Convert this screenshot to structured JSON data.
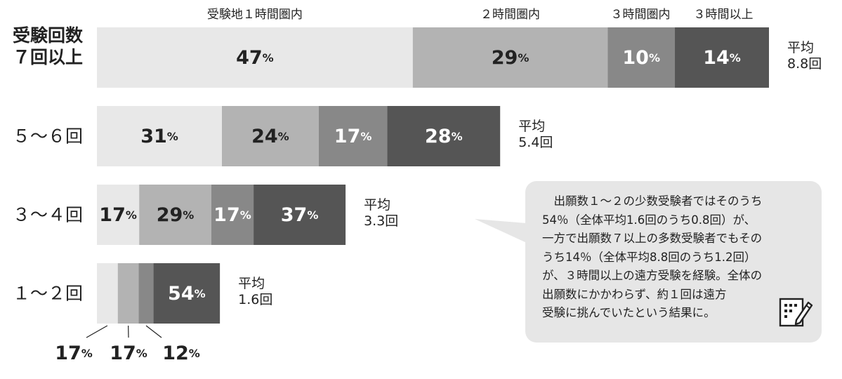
{
  "chart_data": {
    "type": "bar",
    "stacked": true,
    "orientation": "horizontal",
    "percent_suffix": "%",
    "series": [
      {
        "name": "受験地１時間圏内",
        "color": "#e8e8e8"
      },
      {
        "name": "２時間圏内",
        "color": "#b3b3b3"
      },
      {
        "name": "３時間圏内",
        "color": "#888888"
      },
      {
        "name": "３時間以上",
        "color": "#555555"
      }
    ],
    "rows": [
      {
        "label": "受験回数\n７回以上",
        "values": [
          47,
          29,
          10,
          14
        ],
        "average": "平均\n8.8回"
      },
      {
        "label": "５～６回",
        "values": [
          31,
          24,
          17,
          28
        ],
        "average": "平均\n5.4回"
      },
      {
        "label": "３～４回",
        "values": [
          17,
          29,
          17,
          37
        ],
        "average": "平均\n3.3回"
      },
      {
        "label": "１～２回",
        "values": [
          17,
          17,
          12,
          54
        ],
        "average": "平均\n1.6回"
      }
    ]
  },
  "callout": {
    "text": "　出願数１～２の少数受験者ではそのうち\n54％（全体平均1.6回のうち0.8回）が、\n一方で出願数７以上の多数受験者でもその\nうち14％（全体平均8.8回のうち1.2回）\nが、３時間以上の遠方受験を経験。全体の\n出願数にかかわらず、約１回は遠方\n受験に挑んでいたという結果に。",
    "icon": "memo-pencil-icon"
  }
}
